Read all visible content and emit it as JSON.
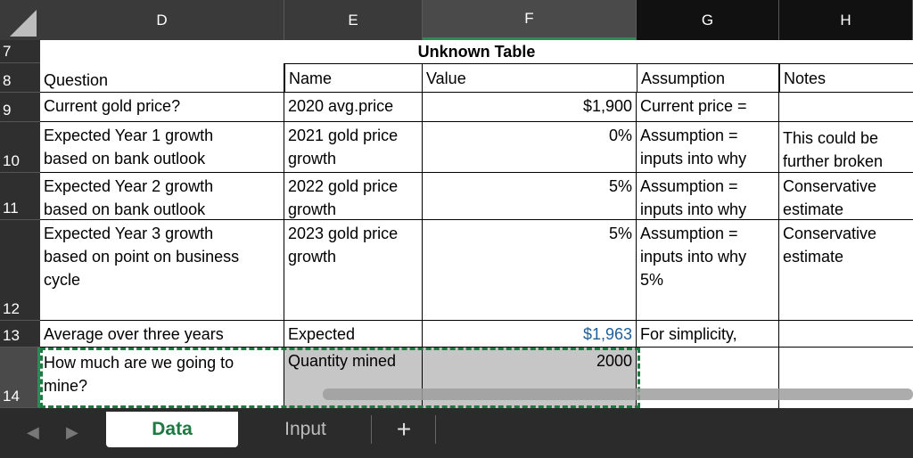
{
  "columns": [
    "D",
    "E",
    "F",
    "G",
    "H"
  ],
  "rows": [
    "7",
    "8",
    "9",
    "10",
    "11",
    "12",
    "13",
    "14"
  ],
  "table_title": "Unknown Table",
  "headers": {
    "question": "Question",
    "name": "Name",
    "value": "Value",
    "assumption": "Assumption",
    "notes": "Notes"
  },
  "data_rows": [
    {
      "question": "Current gold price?",
      "name": "2020 avg.price",
      "value": "$1,900",
      "assumption": "Current price =",
      "notes": ""
    },
    {
      "question": "Expected Year 1 growth\nbased on bank outlook",
      "name": "2021 gold price\ngrowth",
      "value": "0%",
      "assumption": "Assumption =\ninputs into why",
      "notes": "This could be\nfurther broken"
    },
    {
      "question": "Expected Year 2 growth\nbased on bank outlook",
      "name": "2022 gold price\ngrowth",
      "value": "5%",
      "assumption": "Assumption =\ninputs into why",
      "notes": "Conservative\nestimate"
    },
    {
      "question": "Expected Year 3 growth\nbased on point on business\ncycle",
      "name": "2023 gold price\ngrowth",
      "value": "5%",
      "assumption": "Assumption =\ninputs into why\n5%",
      "notes": "Conservative\nestimate"
    },
    {
      "question": "Average over three years",
      "name": "Expected",
      "value": "$1,963",
      "assumption": "For simplicity,",
      "notes": ""
    },
    {
      "question": "How much are we going to\nmine?",
      "name": "Quantity mined",
      "value": "2000",
      "assumption": "",
      "notes": ""
    }
  ],
  "sheet_tabs": {
    "active": "Data",
    "inactive": "Input",
    "add": "+"
  },
  "colors": {
    "selection": "#1e7a43",
    "link_value": "#1f5e9a",
    "header_bg": "#3a3a3a"
  }
}
